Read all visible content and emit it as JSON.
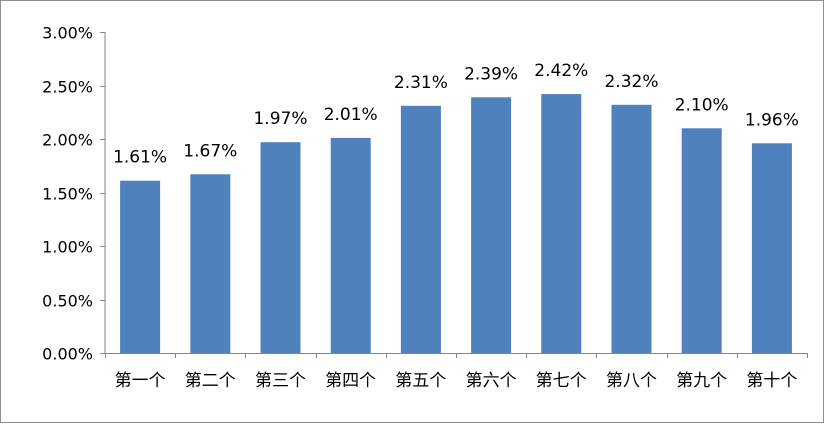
{
  "chart_data": {
    "type": "bar",
    "categories": [
      "第一个",
      "第二个",
      "第三个",
      "第四个",
      "第五个",
      "第六个",
      "第七个",
      "第八个",
      "第九个",
      "第十个"
    ],
    "values": [
      1.61,
      1.67,
      1.97,
      2.01,
      2.31,
      2.39,
      2.42,
      2.32,
      2.1,
      1.96
    ],
    "data_labels": [
      "1.61%",
      "1.67%",
      "1.97%",
      "2.01%",
      "2.31%",
      "2.39%",
      "2.42%",
      "2.32%",
      "2.10%",
      "1.96%"
    ],
    "y_ticks": [
      0,
      0.5,
      1.0,
      1.5,
      2.0,
      2.5,
      3.0
    ],
    "y_tick_labels": [
      "0.00%",
      "0.50%",
      "1.00%",
      "1.50%",
      "2.00%",
      "2.50%",
      "3.00%"
    ],
    "ylim": [
      0,
      3.0
    ],
    "title": "",
    "xlabel": "",
    "ylabel": "",
    "grid": false,
    "legend": "none",
    "bar_color": "#4F81BD",
    "axis_color": "#868686"
  }
}
